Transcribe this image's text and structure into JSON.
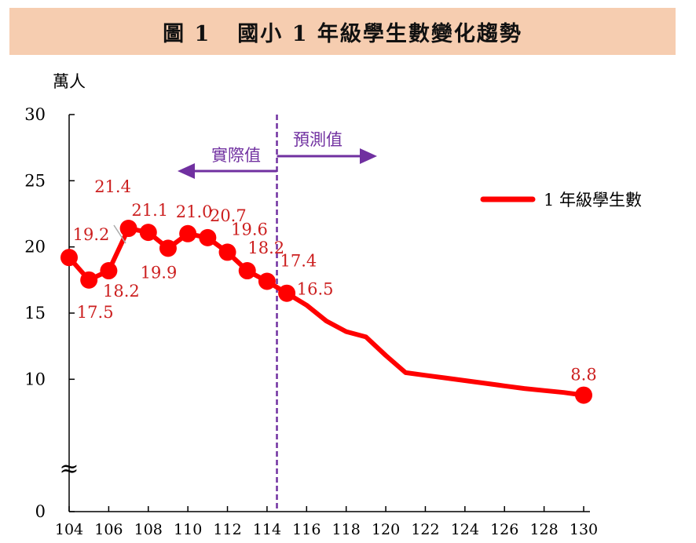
{
  "title": {
    "figure_no": "圖 1",
    "text": "國小 1 年級學生數變化趨勢"
  },
  "chart_data": {
    "type": "line",
    "unit": "萬人",
    "x_ticks": [
      104,
      106,
      108,
      110,
      112,
      114,
      116,
      118,
      120,
      122,
      124,
      126,
      128,
      130
    ],
    "y_ticks": [
      0,
      10,
      15,
      20,
      25,
      30
    ],
    "ylim": [
      0,
      30
    ],
    "xlim": [
      104,
      130
    ],
    "axis_break_mark": "≈",
    "series": [
      {
        "name": "1 年級學生數",
        "color": "#ff0000",
        "x": [
          104,
          105,
          106,
          107,
          108,
          109,
          110,
          111,
          112,
          113,
          114,
          115,
          116,
          117,
          118,
          119,
          120,
          121,
          122,
          123,
          124,
          125,
          126,
          127,
          128,
          129,
          130
        ],
        "y": [
          19.2,
          17.5,
          18.2,
          21.4,
          21.1,
          19.9,
          21.0,
          20.7,
          19.6,
          18.2,
          17.4,
          16.5,
          15.6,
          14.4,
          13.6,
          13.2,
          11.8,
          10.5,
          10.3,
          10.1,
          9.9,
          9.7,
          9.5,
          9.3,
          9.15,
          9.0,
          8.8
        ],
        "markers_at": [
          104,
          105,
          106,
          107,
          108,
          109,
          110,
          111,
          112,
          113,
          114,
          115,
          130
        ],
        "data_labels": [
          {
            "x": 104,
            "text": "19.2"
          },
          {
            "x": 105,
            "text": "17.5"
          },
          {
            "x": 106,
            "text": "18.2"
          },
          {
            "x": 107,
            "text": "21.4"
          },
          {
            "x": 108,
            "text": "21.1"
          },
          {
            "x": 109,
            "text": "19.9"
          },
          {
            "x": 110,
            "text": "21.0"
          },
          {
            "x": 111,
            "text": "20.7"
          },
          {
            "x": 112,
            "text": "19.6"
          },
          {
            "x": 113,
            "text": "18.2"
          },
          {
            "x": 114,
            "text": "17.4"
          },
          {
            "x": 115,
            "text": "16.5"
          },
          {
            "x": 130,
            "text": "8.8"
          }
        ]
      }
    ],
    "divider": {
      "x": 114.5,
      "color": "#7030a0",
      "left_label": "實際值",
      "right_label": "預測值"
    },
    "legend": {
      "position": "top-right"
    },
    "grid": false
  },
  "colors": {
    "series": "#ff0000",
    "label": "#cc1f1f",
    "divider": "#7030a0",
    "title_bg": "#f6cdb0"
  }
}
